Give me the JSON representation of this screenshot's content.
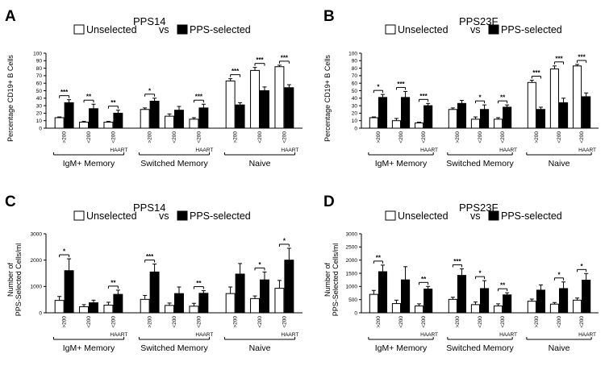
{
  "colors": {
    "unselected": "#ffffff",
    "selected": "#000000",
    "stroke": "#000000"
  },
  "chart_data": [
    {
      "panel_letter": "A",
      "type": "bar",
      "title": "PPS14",
      "ylabel": "Percentage CD19+ B Cells",
      "ylim": [
        0,
        100
      ],
      "yticks": [
        0,
        10,
        20,
        30,
        40,
        50,
        60,
        70,
        80,
        90,
        100
      ],
      "legend": {
        "unselected": "Unselected",
        "vs": "vs",
        "selected": "PPS-selected"
      },
      "categories": [
        ">200",
        "<200",
        "<200"
      ],
      "category_sublabels": [
        "",
        "",
        "HAART"
      ],
      "groups": [
        "IgM+ Memory",
        "Switched Memory",
        "Naive"
      ],
      "series": [
        {
          "name": "Unselected",
          "values": [
            [
              14,
              8,
              8
            ],
            [
              25,
              16,
              12
            ],
            [
              63,
              77,
              82
            ]
          ],
          "errors": [
            [
              1,
              1,
              1
            ],
            [
              2,
              3,
              2
            ],
            [
              3,
              4,
              2
            ]
          ]
        },
        {
          "name": "PPS-selected",
          "values": [
            [
              34,
              26,
              20
            ],
            [
              36,
              24,
              27
            ],
            [
              31,
              50,
              54
            ]
          ],
          "errors": [
            [
              4,
              6,
              4
            ],
            [
              4,
              5,
              5
            ],
            [
              3,
              5,
              4
            ]
          ]
        }
      ],
      "significance": [
        [
          "***",
          "**",
          "**"
        ],
        [
          "*",
          "",
          "***"
        ],
        [
          "***",
          "***",
          "***"
        ]
      ]
    },
    {
      "panel_letter": "B",
      "type": "bar",
      "title": "PPS23F",
      "ylabel": "Percentage CD19+ B Cells",
      "ylim": [
        0,
        100
      ],
      "yticks": [
        0,
        10,
        20,
        30,
        40,
        50,
        60,
        70,
        80,
        90,
        100
      ],
      "legend": {
        "unselected": "Unselected",
        "vs": "vs",
        "selected": "PPS-selected"
      },
      "categories": [
        ">200",
        "<200",
        "<200"
      ],
      "category_sublabels": [
        "",
        "",
        "HAART"
      ],
      "groups": [
        "IgM+ Memory",
        "Switched Memory",
        "Naive"
      ],
      "series": [
        {
          "name": "Unselected",
          "values": [
            [
              14,
              10,
              7
            ],
            [
              25,
              12,
              12
            ],
            [
              61,
              79,
              83
            ]
          ],
          "errors": [
            [
              1,
              3,
              1
            ],
            [
              2,
              3,
              2
            ],
            [
              3,
              4,
              2
            ]
          ]
        },
        {
          "name": "PPS-selected",
          "values": [
            [
              41,
              41,
              30
            ],
            [
              33,
              25,
              28
            ],
            [
              25,
              34,
              42
            ]
          ],
          "errors": [
            [
              4,
              8,
              3
            ],
            [
              4,
              6,
              3
            ],
            [
              3,
              6,
              5
            ]
          ]
        }
      ],
      "significance": [
        [
          "*",
          "***",
          "***"
        ],
        [
          "",
          "*",
          "**"
        ],
        [
          "***",
          "***",
          "***"
        ]
      ]
    },
    {
      "panel_letter": "C",
      "type": "bar",
      "title": "PPS14",
      "ylabel": "Number of PPS-Selected Cells/ml",
      "ylim": [
        0,
        3000
      ],
      "yticks": [
        0,
        1000,
        2000,
        3000
      ],
      "legend": {
        "unselected": "Unselected",
        "vs": "vs",
        "selected": "PPS-selected"
      },
      "categories": [
        ">200",
        "<200",
        "<200"
      ],
      "category_sublabels": [
        "",
        "",
        "HAART"
      ],
      "groups": [
        "IgM+ Memory",
        "Switched Memory",
        "Naive"
      ],
      "series": [
        {
          "name": "Unselected",
          "values": [
            [
              470,
              230,
              290
            ],
            [
              510,
              280,
              250
            ],
            [
              730,
              540,
              930
            ]
          ],
          "errors": [
            [
              150,
              80,
              110
            ],
            [
              150,
              90,
              110
            ],
            [
              250,
              100,
              300
            ]
          ]
        },
        {
          "name": "PPS-selected",
          "values": [
            [
              1600,
              380,
              700
            ],
            [
              1550,
              730,
              740
            ],
            [
              1470,
              1250,
              2000
            ]
          ],
          "errors": [
            [
              450,
              100,
              160
            ],
            [
              300,
              250,
              100
            ],
            [
              400,
              300,
              450
            ]
          ]
        }
      ],
      "significance": [
        [
          "*",
          "",
          "**"
        ],
        [
          "***",
          "",
          "**"
        ],
        [
          "",
          "*",
          "*"
        ]
      ]
    },
    {
      "panel_letter": "D",
      "type": "bar",
      "title": "PPS23F",
      "ylabel": "Number of PPS-Selected Cells/ml",
      "ylim": [
        0,
        3000
      ],
      "yticks": [
        0,
        500,
        1000,
        1500,
        2000,
        2500,
        3000
      ],
      "legend": {
        "unselected": "Unselected",
        "vs": "vs",
        "selected": "PPS-selected"
      },
      "categories": [
        ">200",
        "<200",
        "<200"
      ],
      "category_sublabels": [
        "",
        "",
        "HAART"
      ],
      "groups": [
        "IgM+ Memory",
        "Switched Memory",
        "Naive"
      ],
      "series": [
        {
          "name": "Unselected",
          "values": [
            [
              700,
              350,
              260
            ],
            [
              510,
              310,
              260
            ],
            [
              440,
              330,
              480
            ]
          ],
          "errors": [
            [
              150,
              130,
              80
            ],
            [
              80,
              100,
              80
            ],
            [
              80,
              60,
              80
            ]
          ]
        },
        {
          "name": "PPS-selected",
          "values": [
            [
              1560,
              1250,
              900
            ],
            [
              1420,
              920,
              680
            ],
            [
              860,
              920,
              1240
            ]
          ],
          "errors": [
            [
              250,
              500,
              100
            ],
            [
              250,
              300,
              80
            ],
            [
              200,
              250,
              250
            ]
          ]
        }
      ],
      "significance": [
        [
          "**",
          "",
          "**"
        ],
        [
          "***",
          "*",
          "**"
        ],
        [
          "",
          "*",
          "*"
        ]
      ]
    }
  ]
}
